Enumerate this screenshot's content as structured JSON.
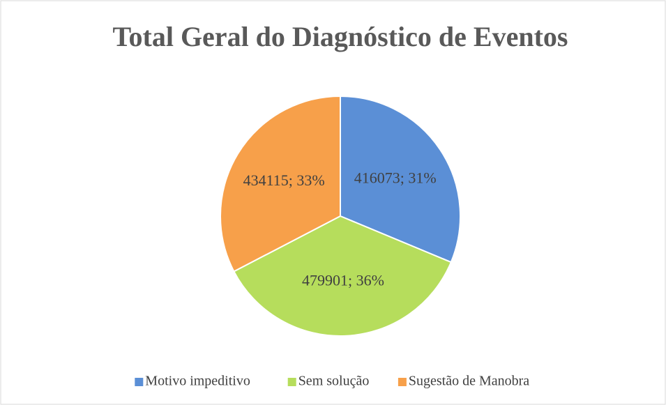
{
  "chart_data": {
    "type": "pie",
    "title": "Total Geral do Diagnóstico de Eventos",
    "categories": [
      "Motivo impeditivo",
      "Sem solução",
      "Sugestão de Manobra"
    ],
    "values": [
      416073,
      479901,
      434115
    ],
    "value_labels": [
      "416073; 31%",
      "479901; 36%",
      "434115; 33%"
    ],
    "colors": [
      "#5b8fd6",
      "#b6dd5c",
      "#f7a04a"
    ],
    "legend": "bottom"
  }
}
